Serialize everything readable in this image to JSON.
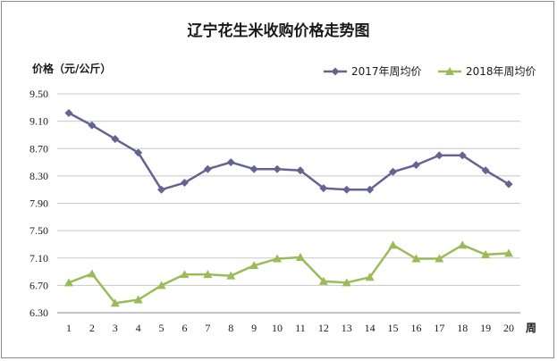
{
  "chart_data": {
    "type": "line",
    "title": "辽宁花生米收购价格走势图",
    "ylabel": "价格（元/公斤）",
    "xlabel": "周",
    "x": [
      1,
      2,
      3,
      4,
      5,
      6,
      7,
      8,
      9,
      10,
      11,
      12,
      13,
      14,
      15,
      16,
      17,
      18,
      19,
      20
    ],
    "ylim": [
      6.3,
      9.5
    ],
    "yticks": [
      "9.50",
      "9.10",
      "8.70",
      "8.30",
      "7.90",
      "7.50",
      "7.10",
      "6.70",
      "6.30"
    ],
    "grid": true,
    "legend_position": "top-right",
    "series": [
      {
        "name": "2017年周均价",
        "color": "#646494",
        "marker": "diamond",
        "values": [
          9.22,
          9.04,
          8.84,
          8.64,
          8.1,
          8.2,
          8.4,
          8.5,
          8.4,
          8.4,
          8.38,
          8.12,
          8.1,
          8.1,
          8.36,
          8.46,
          8.6,
          8.6,
          8.38,
          8.18
        ]
      },
      {
        "name": "2018年周均价",
        "color": "#9bbb59",
        "marker": "triangle",
        "values": [
          6.74,
          6.87,
          6.44,
          6.49,
          6.7,
          6.86,
          6.86,
          6.84,
          6.99,
          7.09,
          7.11,
          6.76,
          6.74,
          6.82,
          7.29,
          7.09,
          7.09,
          7.29,
          7.15,
          7.17
        ]
      }
    ]
  }
}
